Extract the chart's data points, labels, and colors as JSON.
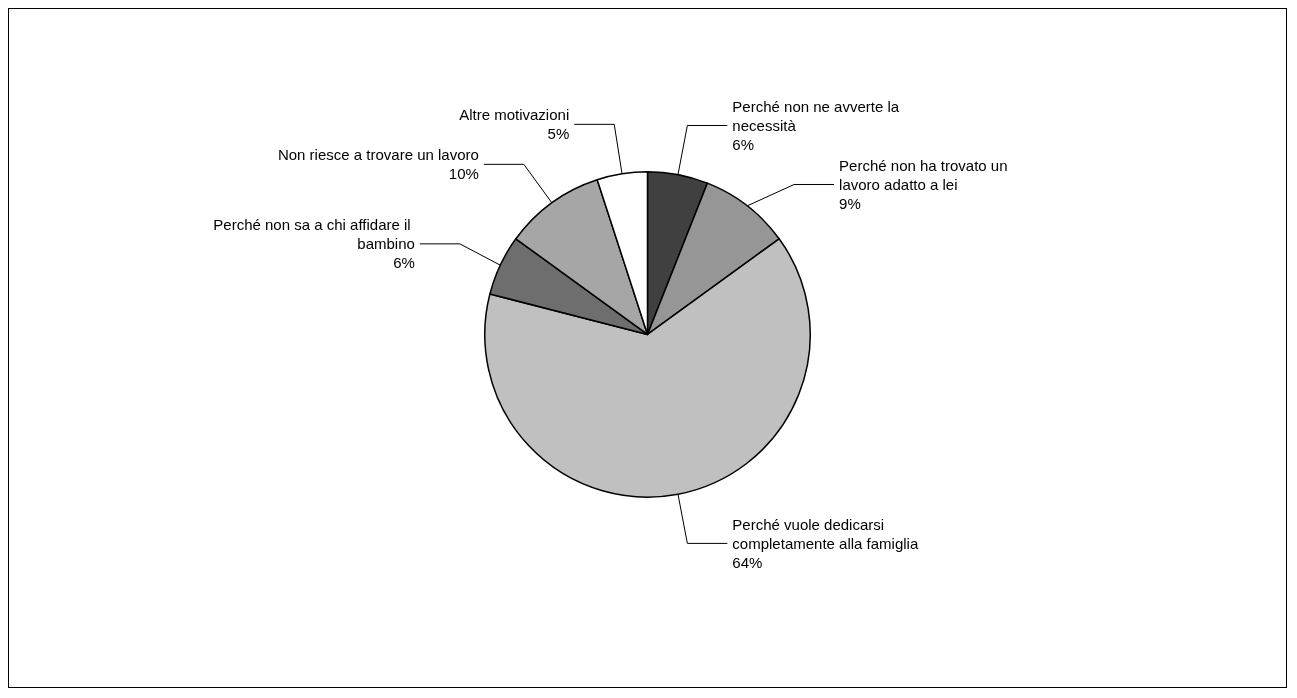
{
  "chart_data": {
    "type": "pie",
    "categories": [
      "Perché non ne avverte la necessità",
      "Perché non ha trovato un lavoro adatto a lei",
      "Perché vuole dedicarsi completamente alla famiglia",
      "Perché non sa a chi affidare il bambino",
      "Non riesce a trovare un lavoro",
      "Altre motivazioni"
    ],
    "values": [
      6,
      9,
      64,
      6,
      10,
      5
    ],
    "value_labels": [
      "6%",
      "9%",
      "64%",
      "6%",
      "10%",
      "5%"
    ],
    "colors": [
      "#404040",
      "#969696",
      "#c0c0c0",
      "#6e6e6e",
      "#a6a6a6",
      "#ffffff"
    ],
    "legend": false
  }
}
